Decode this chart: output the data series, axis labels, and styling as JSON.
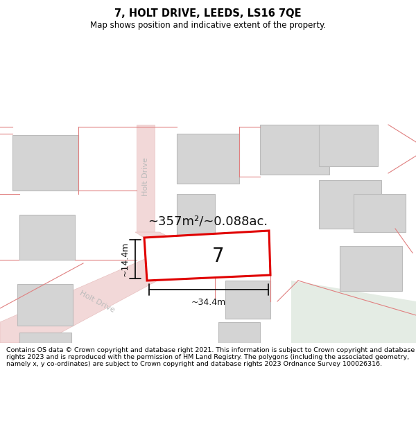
{
  "title": "7, HOLT DRIVE, LEEDS, LS16 7QE",
  "subtitle": "Map shows position and indicative extent of the property.",
  "area_text": "~357m²/~0.088ac.",
  "number_label": "7",
  "dim_width": "~34.4m",
  "dim_height": "~14.4m",
  "street_name_top": "Holt Drive",
  "street_name_diag": "Holt Drive",
  "copyright_text": "Contains OS data © Crown copyright and database right 2021. This information is subject to Crown copyright and database rights 2023 and is reproduced with the permission of HM Land Registry. The polygons (including the associated geometry, namely x, y co-ordinates) are subject to Crown copyright and database rights 2023 Ordnance Survey 100026316.",
  "bg_color": "#f0eeee",
  "road_color": "#f2d8d8",
  "road_edge": "#e8c0c0",
  "building_fill": "#d4d4d4",
  "building_edge": "#bbbbbb",
  "plot_fill": "#ffffff",
  "plot_edge": "#e00000",
  "plot_lw": 2.2,
  "dim_color": "#111111",
  "label_color": "#111111",
  "street_color": "#bbbbbb",
  "green_color": "#e4ece4",
  "title_fontsize": 10.5,
  "subtitle_fontsize": 8.5,
  "area_fontsize": 13,
  "number_fontsize": 20,
  "dim_fontsize": 9,
  "street_fontsize": 8,
  "copyright_fontsize": 6.8
}
